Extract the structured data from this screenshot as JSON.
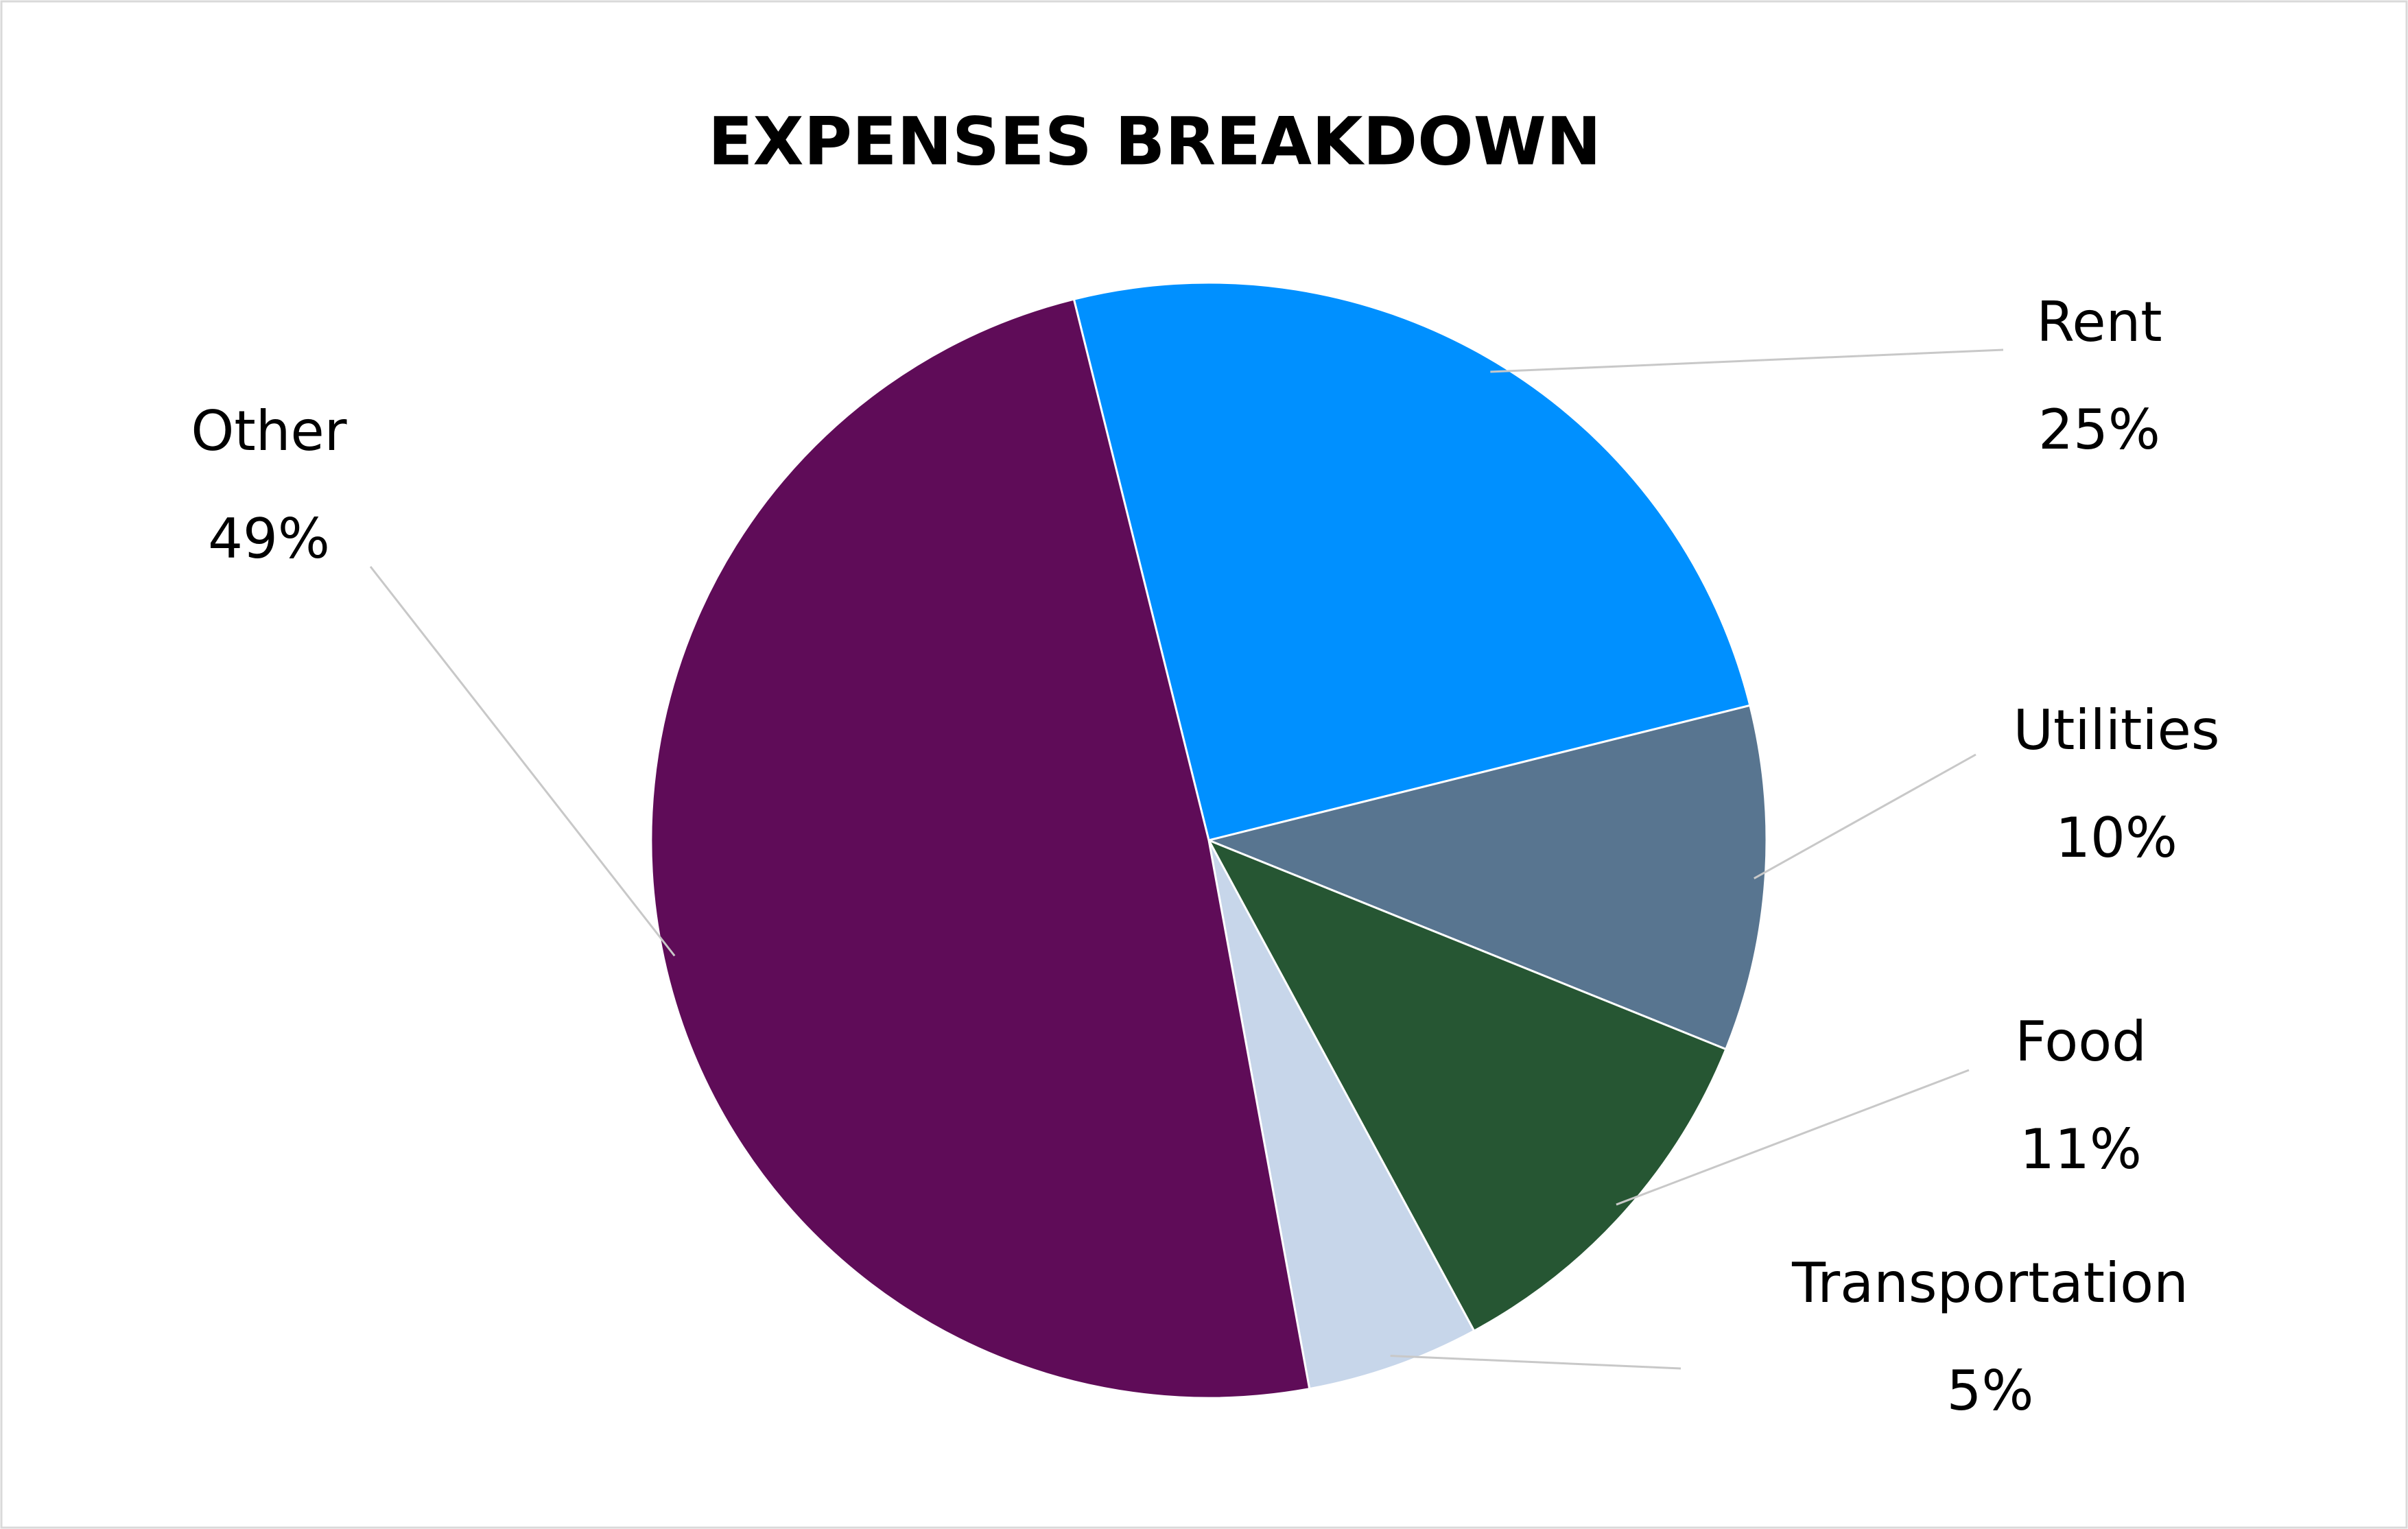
{
  "chart_data": {
    "type": "pie",
    "title": "EXPENSES BREAKDOWN",
    "categories": [
      "Rent",
      "Utilities",
      "Food",
      "Transportation",
      "Other"
    ],
    "values": [
      25,
      10,
      11,
      5,
      49
    ],
    "value_labels": [
      "25%",
      "10%",
      "11%",
      "5%",
      "49%"
    ],
    "colors": [
      "#0090ff",
      "#587590",
      "#265633",
      "#c7d6ea",
      "#5f0c58"
    ]
  }
}
